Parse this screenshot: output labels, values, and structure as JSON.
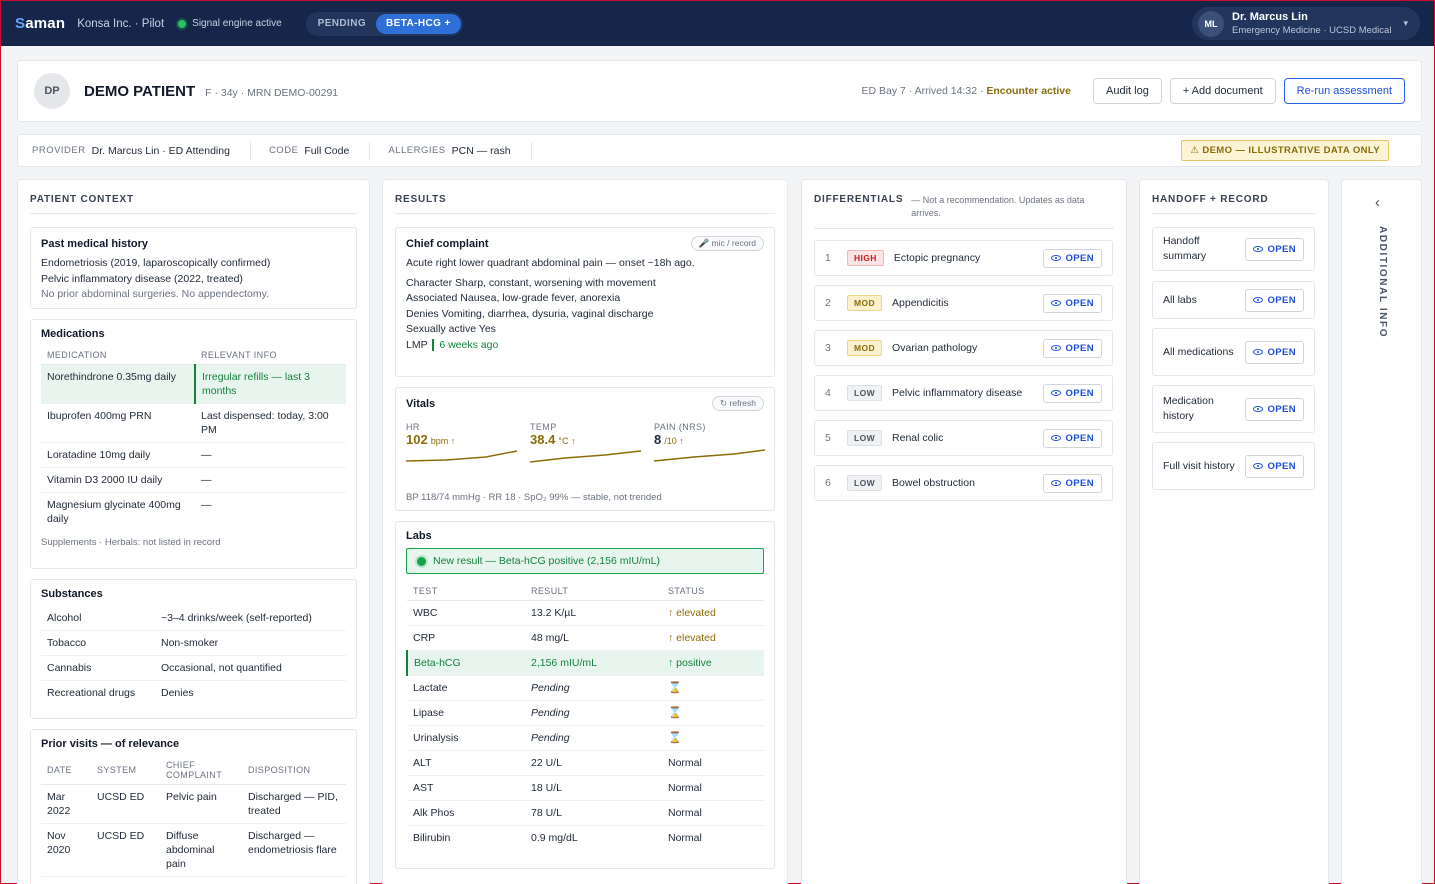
{
  "topbar": {
    "brand_s": "S",
    "brand_rest": "aman",
    "org": "Konsa Inc. · Pilot",
    "engine": "Signal engine active",
    "pills": [
      "PENDING",
      "BETA-HCG +"
    ],
    "user": {
      "initials": "ML",
      "name": "Dr. Marcus Lin",
      "role": "Emergency Medicine · UCSD Medical"
    }
  },
  "patient": {
    "initials": "DP",
    "name": "DEMO PATIENT",
    "meta": "F · 34y · MRN DEMO-00291",
    "encounter": "ED Bay 7 · Arrived 14:32 · ",
    "encounter_status": "Encounter active",
    "buttons": {
      "audit": "Audit log",
      "add_doc": "+ Add document",
      "rerun": "Re-run assessment"
    }
  },
  "infobar": {
    "provider_k": "PROVIDER",
    "provider_v": "Dr. Marcus Lin · ED Attending",
    "code_k": "CODE",
    "code_v": "Full Code",
    "allergies_k": "ALLERGIES",
    "allergies_v": "PCN — rash",
    "demo": "⚠ DEMO — ILLUSTRATIVE DATA ONLY"
  },
  "context": {
    "title": "PATIENT CONTEXT",
    "pmh": {
      "title": "Past medical history",
      "lines": [
        "Endometriosis (2019, laparoscopically confirmed)",
        "Pelvic inflammatory disease (2022, treated)"
      ],
      "note": "No prior abdominal surgeries. No appendectomy."
    },
    "meds": {
      "title": "Medications",
      "headers": [
        "MEDICATION",
        "RELEVANT INFO"
      ],
      "rows": [
        [
          "Norethindrone 0.35mg daily",
          "Irregular refills — last 3 months"
        ],
        [
          "Ibuprofen 400mg PRN",
          "Last dispensed: today, 3:00 PM"
        ],
        [
          "Loratadine 10mg daily",
          "—"
        ],
        [
          "Vitamin D3 2000 IU daily",
          "—"
        ],
        [
          "Magnesium glycinate 400mg daily",
          "—"
        ]
      ],
      "note": "Supplements · Herbals: not listed in record"
    },
    "substances": {
      "title": "Substances",
      "rows": [
        [
          "Alcohol",
          "~3–4 drinks/week (self-reported)"
        ],
        [
          "Tobacco",
          "Non-smoker"
        ],
        [
          "Cannabis",
          "Occasional, not quantified"
        ],
        [
          "Recreational drugs",
          "Denies"
        ]
      ]
    },
    "prior": {
      "title": "Prior visits — of relevance",
      "headers": [
        "DATE",
        "SYSTEM",
        "CHIEF COMPLAINT",
        "DISPOSITION"
      ],
      "rows": [
        [
          "Mar 2022",
          "UCSD ED",
          "Pelvic pain",
          "Discharged — PID, treated"
        ],
        [
          "Nov 2020",
          "UCSD ED",
          "Diffuse abdominal pain",
          "Discharged — endometriosis flare"
        ]
      ]
    }
  },
  "results": {
    "title": "RESULTS",
    "cc": {
      "title": "Chief complaint",
      "chip": "mic / record",
      "summary": "Acute right lower quadrant abdominal pain — onset ~18h ago.",
      "items": [
        {
          "k": "Character",
          "v": "Sharp, constant, worsening with movement"
        },
        {
          "k": "Associated",
          "v": "Nausea, low-grade fever, anorexia"
        },
        {
          "k": "Denies",
          "v": "Vomiting, diarrhea, dysuria, vaginal discharge"
        },
        {
          "k": "Sexually active",
          "v": "Yes"
        }
      ],
      "lmp_k": "LMP",
      "lmp_v": "6 weeks ago"
    },
    "vitals": {
      "title": "Vitals",
      "chip": "↻ refresh",
      "items": [
        {
          "label": "HR",
          "value": "102",
          "unit": "bpm ↑"
        },
        {
          "label": "TEMP",
          "value": "38.4",
          "unit": "°C ↑"
        },
        {
          "label": "PAIN (NRS)",
          "value": "8",
          "unit": "/10 ↑"
        }
      ],
      "note": "BP 118/74 mmHg · RR 18 · SpO₂ 99% — stable, not trended"
    },
    "labs": {
      "title": "Labs",
      "alert": "New result — Beta-hCG positive (2,156 mIU/mL)",
      "headers": [
        "TEST",
        "RESULT",
        "STATUS"
      ],
      "rows": [
        [
          "WBC",
          "13.2 K/µL",
          "↑ elevated"
        ],
        [
          "CRP",
          "48 mg/L",
          "↑ elevated"
        ],
        [
          "Beta-hCG",
          "2,156 mIU/mL",
          "↑ positive"
        ],
        [
          "Lactate",
          "Pending",
          "⌛"
        ],
        [
          "Lipase",
          "Pending",
          "⌛"
        ],
        [
          "Urinalysis",
          "Pending",
          "⌛"
        ],
        [
          "ALT",
          "22 U/L",
          "Normal"
        ],
        [
          "AST",
          "18 U/L",
          "Normal"
        ],
        [
          "Alk Phos",
          "78 U/L",
          "Normal"
        ],
        [
          "Bilirubin",
          "0.9 mg/dL",
          "Normal"
        ]
      ]
    }
  },
  "differentials": {
    "title": "DIFFERENTIALS",
    "note": "— Not a recommendation. Updates as data arrives.",
    "open_label": "OPEN",
    "items": [
      {
        "n": "1",
        "level": "HIGH",
        "name": "Ectopic pregnancy"
      },
      {
        "n": "2",
        "level": "MOD",
        "name": "Appendicitis"
      },
      {
        "n": "3",
        "level": "MOD",
        "name": "Ovarian pathology"
      },
      {
        "n": "4",
        "level": "LOW",
        "name": "Pelvic inflammatory disease"
      },
      {
        "n": "5",
        "level": "LOW",
        "name": "Renal colic"
      },
      {
        "n": "6",
        "level": "LOW",
        "name": "Bowel obstruction"
      }
    ]
  },
  "handoff": {
    "title": "HANDOFF + RECORD",
    "open_label": "OPEN",
    "items": [
      "Handoff summary",
      "All labs",
      "All medications",
      "Medication history",
      "Full visit history"
    ]
  },
  "rail": {
    "label": "ADDITIONAL INFO",
    "icon": "chevron-left-icon"
  }
}
